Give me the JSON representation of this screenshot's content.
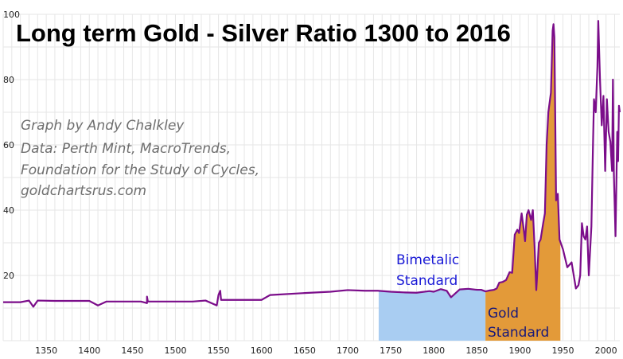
{
  "chart_data": {
    "type": "line",
    "title": "Long term Gold - Silver Ratio 1300 to 2016",
    "credits": [
      "Graph by Andy  Chalkley",
      "Data: Perth Mint, MacroTrends,",
      "Foundation for the Study of Cycles,",
      "goldchartsrus.com"
    ],
    "xlim": [
      1300,
      2016
    ],
    "ylim": [
      0,
      100
    ],
    "x_ticks": [
      1350,
      1400,
      1450,
      1500,
      1550,
      1600,
      1650,
      1700,
      1750,
      1800,
      1850,
      1900,
      1950,
      2000
    ],
    "y_ticks": [
      20,
      40,
      60,
      80,
      100
    ],
    "grid": true,
    "line_color": "#7b0d8a",
    "regions": [
      {
        "label_lines": [
          "Bimetalic",
          "Standard"
        ],
        "x_start": 1736,
        "x_end": 1860,
        "color": "#a9cdf2",
        "text_color": "#1a1ad6"
      },
      {
        "label_lines": [
          "Gold",
          "Standard"
        ],
        "x_start": 1860,
        "x_end": 1947,
        "color": "#e39a39",
        "text_color": "#1a1a7a"
      }
    ],
    "series": [
      {
        "points": [
          [
            1300,
            11.8
          ],
          [
            1320,
            11.8
          ],
          [
            1330,
            12.3
          ],
          [
            1335,
            10.4
          ],
          [
            1340,
            12.3
          ],
          [
            1360,
            12.2
          ],
          [
            1400,
            12.2
          ],
          [
            1410,
            10.8
          ],
          [
            1420,
            12.0
          ],
          [
            1460,
            12.0
          ],
          [
            1467,
            11.5
          ],
          [
            1467,
            13.5
          ],
          [
            1468,
            12.0
          ],
          [
            1520,
            12.0
          ],
          [
            1535,
            12.3
          ],
          [
            1548,
            10.8
          ],
          [
            1550,
            14.0
          ],
          [
            1552,
            15.3
          ],
          [
            1553,
            12.5
          ],
          [
            1600,
            12.5
          ],
          [
            1610,
            14.0
          ],
          [
            1650,
            14.6
          ],
          [
            1680,
            15.0
          ],
          [
            1700,
            15.5
          ],
          [
            1720,
            15.3
          ],
          [
            1735,
            15.3
          ],
          [
            1750,
            15.0
          ],
          [
            1765,
            14.8
          ],
          [
            1780,
            14.7
          ],
          [
            1795,
            15.2
          ],
          [
            1800,
            15.0
          ],
          [
            1808,
            15.8
          ],
          [
            1815,
            15.3
          ],
          [
            1820,
            13.3
          ],
          [
            1830,
            15.7
          ],
          [
            1840,
            15.9
          ],
          [
            1850,
            15.6
          ],
          [
            1855,
            15.6
          ],
          [
            1860,
            15.1
          ],
          [
            1865,
            15.4
          ],
          [
            1870,
            15.6
          ],
          [
            1873,
            16.0
          ],
          [
            1876,
            17.8
          ],
          [
            1880,
            18.0
          ],
          [
            1884,
            18.6
          ],
          [
            1888,
            21.0
          ],
          [
            1891,
            20.8
          ],
          [
            1894,
            32.5
          ],
          [
            1897,
            34.0
          ],
          [
            1899,
            33.0
          ],
          [
            1902,
            39.0
          ],
          [
            1904,
            35.0
          ],
          [
            1906,
            30.5
          ],
          [
            1908,
            38.6
          ],
          [
            1910,
            40.0
          ],
          [
            1913,
            37.0
          ],
          [
            1915,
            40.0
          ],
          [
            1917,
            29.0
          ],
          [
            1919,
            15.5
          ],
          [
            1920,
            20.0
          ],
          [
            1922,
            30.0
          ],
          [
            1924,
            31.0
          ],
          [
            1927,
            36.0
          ],
          [
            1929,
            39.0
          ],
          [
            1931,
            60.0
          ],
          [
            1933,
            70.0
          ],
          [
            1936,
            76.0
          ],
          [
            1938,
            95.0
          ],
          [
            1939,
            97.0
          ],
          [
            1940,
            93.0
          ],
          [
            1941,
            69.0
          ],
          [
            1942,
            43.0
          ],
          [
            1944,
            45.0
          ],
          [
            1946,
            31.0
          ],
          [
            1950,
            28.0
          ],
          [
            1955,
            22.5
          ],
          [
            1960,
            24.0
          ],
          [
            1965,
            16.0
          ],
          [
            1968,
            17.0
          ],
          [
            1970,
            20.0
          ],
          [
            1972,
            36.0
          ],
          [
            1974,
            32.0
          ],
          [
            1976,
            31.0
          ],
          [
            1978,
            35.0
          ],
          [
            1980,
            20.0
          ],
          [
            1983,
            35.0
          ],
          [
            1985,
            62.0
          ],
          [
            1986,
            74.0
          ],
          [
            1988,
            70.0
          ],
          [
            1990,
            84.0
          ],
          [
            1991,
            98.0
          ],
          [
            1993,
            80.0
          ],
          [
            1995,
            66.0
          ],
          [
            1997,
            75.0
          ],
          [
            1999,
            52.0
          ],
          [
            2001,
            74.0
          ],
          [
            2003,
            64.0
          ],
          [
            2005,
            61.0
          ],
          [
            2007,
            52.0
          ],
          [
            2008,
            80.0
          ],
          [
            2009,
            52.0
          ],
          [
            2011,
            32.0
          ],
          [
            2013,
            64.0
          ],
          [
            2014,
            55.0
          ],
          [
            2015,
            72.0
          ],
          [
            2016,
            70.0
          ]
        ]
      }
    ]
  }
}
